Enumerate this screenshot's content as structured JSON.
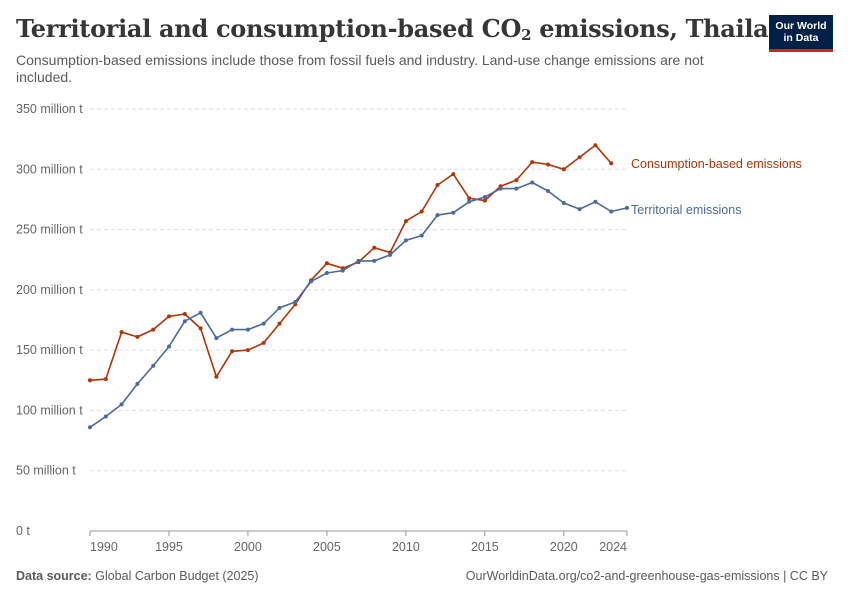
{
  "header": {
    "title_main": "Territorial and consumption-based CO",
    "title_sub": "2",
    "title_rest": " emissions, Thailand",
    "subtitle": "Consumption-based emissions include those from fossil fuels and industry. Land-use change emissions are not included."
  },
  "logo": {
    "line1": "Our World",
    "line2": "in Data"
  },
  "footer": {
    "source_label": "Data source:",
    "source_value": "Global Carbon Budget (2025)",
    "url": "OurWorldinData.org/co2-and-greenhouse-gas-emissions | CC BY"
  },
  "chart_data": {
    "type": "line",
    "ylim": [
      0,
      350
    ],
    "y_ticks": [
      {
        "value": 0,
        "label": "0 t"
      },
      {
        "value": 50,
        "label": "50 million t"
      },
      {
        "value": 100,
        "label": "100 million t"
      },
      {
        "value": 150,
        "label": "150 million t"
      },
      {
        "value": 200,
        "label": "200 million t"
      },
      {
        "value": 250,
        "label": "250 million t"
      },
      {
        "value": 300,
        "label": "300 million t"
      },
      {
        "value": 350,
        "label": "350 million t"
      }
    ],
    "x_ticks": [
      {
        "value": 1990,
        "label": "1990"
      },
      {
        "value": 1995,
        "label": "1995"
      },
      {
        "value": 2000,
        "label": "2000"
      },
      {
        "value": 2005,
        "label": "2005"
      },
      {
        "value": 2010,
        "label": "2010"
      },
      {
        "value": 2015,
        "label": "2015"
      },
      {
        "value": 2020,
        "label": "2020"
      },
      {
        "value": 2024,
        "label": "2024"
      }
    ],
    "xlim": [
      1990,
      2024
    ],
    "x": [
      1990,
      1991,
      1992,
      1993,
      1994,
      1995,
      1996,
      1997,
      1998,
      1999,
      2000,
      2001,
      2002,
      2003,
      2004,
      2005,
      2006,
      2007,
      2008,
      2009,
      2010,
      2011,
      2012,
      2013,
      2014,
      2015,
      2016,
      2017,
      2018,
      2019,
      2020,
      2021,
      2022,
      2023,
      2024
    ],
    "series": [
      {
        "name": "Consumption-based emissions",
        "color": "#b13507",
        "values": [
          125,
          126,
          165,
          161,
          167,
          178,
          180,
          168,
          128,
          149,
          150,
          156,
          172,
          188,
          208,
          222,
          218,
          223,
          235,
          231,
          257,
          265,
          287,
          296,
          276,
          274,
          286,
          291,
          306,
          304,
          300,
          310,
          320,
          305,
          null
        ]
      },
      {
        "name": "Territorial emissions",
        "color": "#4c6a9c",
        "values": [
          86,
          95,
          105,
          122,
          137,
          153,
          174,
          181,
          160,
          167,
          167,
          172,
          185,
          190,
          207,
          214,
          216,
          224,
          224,
          229,
          241,
          245,
          262,
          264,
          273,
          277,
          284,
          284,
          289,
          282,
          272,
          267,
          273,
          265,
          268
        ]
      }
    ],
    "grid": "horizontal-dashed",
    "legend": "inline-right"
  }
}
